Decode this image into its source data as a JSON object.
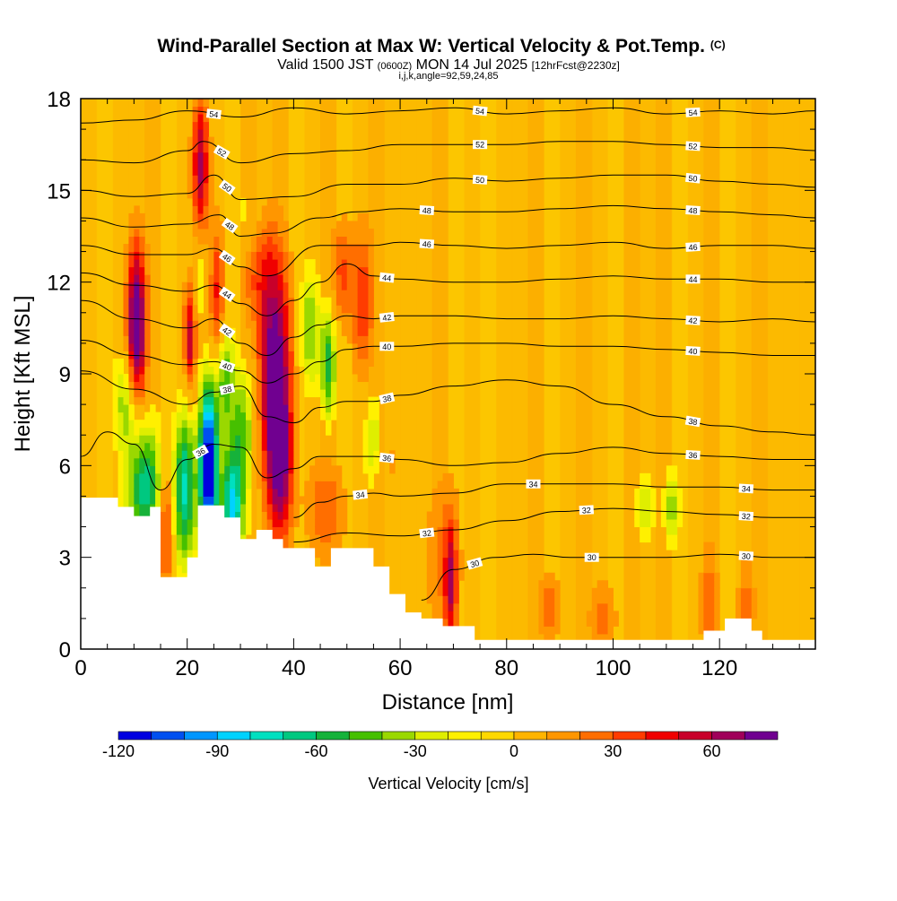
{
  "chart_data": {
    "type": "heatmap",
    "title": "Wind-Parallel Section at Max W: Vertical Velocity & Pot.Temp.",
    "title_suffix": "(C)",
    "subtitle_parts": [
      "Valid 1500 JST ",
      "(0600Z)",
      " MON 14 Jul 2025 ",
      "[12hrFcst@2230z]"
    ],
    "subtitle2": "i,j,k,angle=92,59,24,85",
    "xlabel": "Distance [nm]",
    "ylabel": "Height [Kft MSL]",
    "xlim": [
      0,
      138
    ],
    "ylim": [
      0,
      18
    ],
    "x_ticks": [
      0,
      20,
      40,
      60,
      80,
      100,
      120
    ],
    "y_ticks": [
      0,
      3,
      6,
      9,
      12,
      15,
      18
    ],
    "background_fill": "#fbbd00",
    "terrain_color": "#ffffff",
    "colorbar": {
      "label": "Vertical Velocity [cm/s]",
      "ticks": [
        -120,
        -90,
        -60,
        -30,
        0,
        30,
        60
      ],
      "min": -120,
      "max": 80,
      "step": 10,
      "colors": [
        "#0000e0",
        "#0050f0",
        "#0096ff",
        "#00d2ff",
        "#00e0c0",
        "#00c880",
        "#16b23a",
        "#46c000",
        "#9ad800",
        "#dfee00",
        "#fff000",
        "#ffd800",
        "#ffb400",
        "#ff9600",
        "#ff6e00",
        "#ff3c00",
        "#f00000",
        "#c8002a",
        "#a0005a",
        "#700090"
      ]
    },
    "contours": [
      {
        "label": "54",
        "x": [
          0,
          10,
          20,
          30,
          40,
          50,
          60,
          70,
          80,
          90,
          100,
          110,
          120,
          130,
          138
        ],
        "y": [
          17.2,
          17.3,
          17.6,
          17.4,
          17.7,
          17.5,
          17.6,
          17.7,
          17.5,
          17.6,
          17.7,
          17.5,
          17.6,
          17.5,
          17.6
        ]
      },
      {
        "label": "52",
        "x": [
          0,
          10,
          20,
          23,
          30,
          40,
          50,
          60,
          70,
          80,
          90,
          100,
          110,
          120,
          130,
          138
        ],
        "y": [
          16.0,
          15.9,
          16.3,
          16.6,
          15.9,
          16.2,
          16.3,
          16.5,
          16.5,
          16.5,
          16.6,
          16.6,
          16.5,
          16.4,
          16.4,
          16.3
        ]
      },
      {
        "label": "50",
        "x": [
          0,
          10,
          20,
          25,
          30,
          40,
          50,
          60,
          70,
          80,
          90,
          100,
          110,
          120,
          130,
          138
        ],
        "y": [
          15.0,
          14.8,
          14.9,
          15.5,
          14.7,
          14.8,
          15.2,
          15.2,
          15.4,
          15.3,
          15.4,
          15.5,
          15.5,
          15.3,
          15.2,
          15.1
        ]
      },
      {
        "label": "48",
        "x": [
          0,
          10,
          20,
          26,
          30,
          36,
          45,
          52,
          60,
          70,
          80,
          90,
          100,
          110,
          120,
          130,
          138
        ],
        "y": [
          14.1,
          13.8,
          13.9,
          14.2,
          13.5,
          13.6,
          14.1,
          14.3,
          14.4,
          14.3,
          14.3,
          14.4,
          14.5,
          14.4,
          14.3,
          14.2,
          14.1
        ]
      },
      {
        "label": "46",
        "x": [
          0,
          10,
          20,
          25,
          30,
          35,
          45,
          55,
          60,
          70,
          80,
          90,
          100,
          110,
          120,
          130,
          138
        ],
        "y": [
          13.2,
          12.9,
          12.9,
          13.1,
          12.5,
          12.2,
          13.2,
          13.2,
          13.3,
          13.2,
          13.1,
          13.2,
          13.3,
          13.1,
          13.2,
          13.2,
          13.1
        ]
      },
      {
        "label": "44",
        "x": [
          0,
          10,
          20,
          25,
          30,
          35,
          40,
          45,
          50,
          55,
          60,
          70,
          80,
          90,
          100,
          110,
          120,
          130,
          138
        ],
        "y": [
          12.3,
          11.9,
          11.7,
          11.9,
          11.3,
          10.9,
          11.4,
          12.0,
          12.6,
          12.2,
          12.1,
          12.0,
          12.0,
          12.1,
          12.2,
          12.1,
          12.1,
          12.0,
          12.0
        ]
      },
      {
        "label": "42",
        "x": [
          0,
          10,
          20,
          25,
          30,
          35,
          40,
          45,
          50,
          55,
          60,
          70,
          80,
          90,
          100,
          110,
          120,
          130,
          138
        ],
        "y": [
          11.4,
          10.8,
          10.5,
          10.8,
          10.0,
          9.6,
          10.2,
          10.6,
          10.9,
          10.8,
          10.9,
          10.9,
          10.8,
          10.8,
          10.9,
          10.8,
          10.7,
          10.8,
          10.7
        ]
      },
      {
        "label": "40",
        "x": [
          0,
          10,
          20,
          25,
          30,
          35,
          40,
          45,
          50,
          55,
          60,
          70,
          80,
          90,
          100,
          110,
          120,
          130,
          138
        ],
        "y": [
          10.1,
          9.6,
          9.3,
          9.4,
          9.1,
          8.7,
          9.0,
          9.4,
          9.8,
          9.9,
          9.9,
          10.0,
          10.0,
          9.9,
          9.9,
          9.8,
          9.7,
          9.6,
          9.6
        ]
      },
      {
        "label": "38",
        "x": [
          0,
          10,
          20,
          25,
          30,
          35,
          40,
          45,
          50,
          55,
          60,
          70,
          80,
          90,
          100,
          110,
          120,
          130,
          138
        ],
        "y": [
          9.1,
          8.5,
          8.0,
          8.4,
          8.6,
          7.6,
          7.4,
          7.9,
          8.1,
          8.1,
          8.3,
          8.6,
          8.8,
          8.6,
          8.0,
          7.6,
          7.3,
          7.1,
          7.0
        ]
      },
      {
        "label": "36",
        "x": [
          0,
          5,
          10,
          15,
          20,
          25,
          30,
          35,
          40,
          45,
          50,
          55,
          60,
          70,
          80,
          90,
          100,
          110,
          120,
          130,
          138
        ],
        "y": [
          6.3,
          7.1,
          6.7,
          5.2,
          6.2,
          6.7,
          6.6,
          5.6,
          5.9,
          6.3,
          6.3,
          6.3,
          6.2,
          6.0,
          6.1,
          6.4,
          6.6,
          6.4,
          6.3,
          6.2,
          6.2
        ]
      },
      {
        "label": "34",
        "x": [
          40,
          45,
          50,
          55,
          60,
          70,
          80,
          90,
          100,
          110,
          120,
          130,
          138
        ],
        "y": [
          4.3,
          4.8,
          5.0,
          5.1,
          5.0,
          5.1,
          5.4,
          5.4,
          5.4,
          5.3,
          5.3,
          5.2,
          5.2
        ]
      },
      {
        "label": "32",
        "x": [
          40,
          50,
          60,
          70,
          80,
          90,
          100,
          110,
          120,
          130,
          138
        ],
        "y": [
          3.5,
          3.8,
          3.7,
          3.9,
          4.2,
          4.5,
          4.6,
          4.5,
          4.4,
          4.3,
          4.3
        ]
      },
      {
        "label": "30",
        "x": [
          64,
          70,
          78,
          85,
          92,
          100,
          110,
          120,
          130,
          138
        ],
        "y": [
          1.6,
          2.6,
          3.0,
          3.1,
          3.0,
          3.0,
          3.0,
          3.1,
          3.0,
          3.0
        ]
      }
    ]
  }
}
